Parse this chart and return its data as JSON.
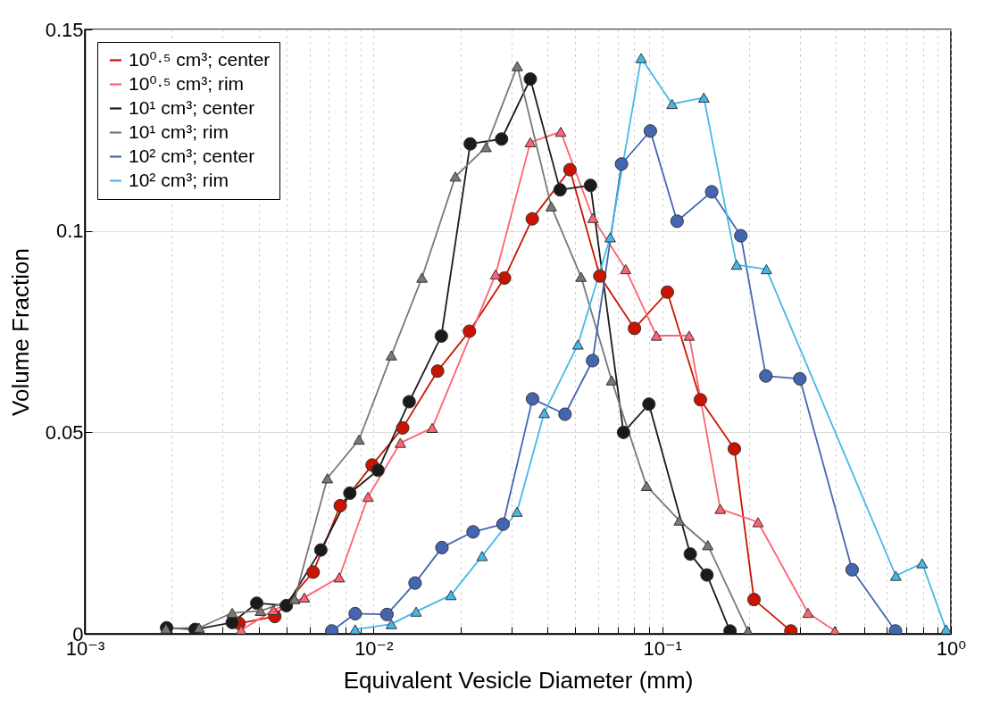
{
  "chart_data": {
    "type": "line",
    "xlabel": "Equivalent Vesicle Diameter (mm)",
    "ylabel": "Volume Fraction",
    "log": "x",
    "grid": true,
    "legend": "top left",
    "xlim": [
      0.001,
      1
    ],
    "xticks": [
      {
        "value": 0.001,
        "label": "10⁻³"
      },
      {
        "value": 0.01,
        "label": "10⁻²"
      },
      {
        "value": 0.1,
        "label": "10⁻¹"
      },
      {
        "value": 1,
        "label": "10⁰"
      }
    ],
    "ylim": [
      0,
      0.15
    ],
    "yticks": [
      0,
      0.05,
      0.1,
      0.15
    ],
    "series": [
      {
        "name": "10⁰·⁵ cm³; center",
        "color": "#c81400",
        "marker": "circle",
        "x": [
          0.00342,
          0.00455,
          0.00618,
          0.00767,
          0.00989,
          0.01262,
          0.01667,
          0.02149,
          0.02843,
          0.03548,
          0.04791,
          0.06081,
          0.08017,
          0.1042,
          0.1356,
          0.1778,
          0.208,
          0.2791
        ],
        "values": [
          0.0026,
          0.0043,
          0.0153,
          0.0318,
          0.0419,
          0.0511,
          0.0652,
          0.0751,
          0.0883,
          0.103,
          0.1152,
          0.0888,
          0.0758,
          0.0848,
          0.0581,
          0.0459,
          0.0085,
          0.0007
        ]
      },
      {
        "name": "10⁰·⁵ cm³; rim",
        "color": "#ff6272",
        "marker": "triangle",
        "x": [
          0.00348,
          0.0045,
          0.00576,
          0.00761,
          0.00957,
          0.01239,
          0.01597,
          0.02648,
          0.03493,
          0.04452,
          0.05754,
          0.07472,
          0.0955,
          0.124,
          0.1589,
          0.2148,
          0.32,
          0.3962
        ],
        "values": [
          0.0009,
          0.0059,
          0.009,
          0.014,
          0.034,
          0.0474,
          0.0511,
          0.0892,
          0.122,
          0.1246,
          0.1032,
          0.0905,
          0.074,
          0.074,
          0.031,
          0.0277,
          0.0052,
          0.0007
        ]
      },
      {
        "name": "10¹ cm³; center",
        "color": "#1a1a1a",
        "marker": "circle",
        "x": [
          0.00192,
          0.00241,
          0.00324,
          0.00394,
          0.00499,
          0.00657,
          0.00828,
          0.01036,
          0.01329,
          0.01718,
          0.02163,
          0.02777,
          0.03493,
          0.04427,
          0.05645,
          0.07345,
          0.08995,
          0.1251,
          0.1429,
          0.1718
        ],
        "values": [
          0.0015,
          0.0011,
          0.0028,
          0.0076,
          0.007,
          0.0208,
          0.0349,
          0.0406,
          0.0576,
          0.0739,
          0.1216,
          0.1228,
          0.1377,
          0.1102,
          0.1113,
          0.05,
          0.057,
          0.0198,
          0.0146,
          0.0007
        ]
      },
      {
        "name": "10¹ cm³; rim",
        "color": "#787878",
        "marker": "triangle",
        "x": [
          0.00191,
          0.00249,
          0.00324,
          0.00406,
          0.00533,
          0.00692,
          0.00891,
          0.01153,
          0.01472,
          0.01921,
          0.02454,
          0.03148,
          0.04127,
          0.05234,
          0.06683,
          0.08826,
          0.1146,
          0.1439,
          0.1982
        ],
        "values": [
          0.0013,
          0.0015,
          0.0052,
          0.0057,
          0.0086,
          0.0386,
          0.0482,
          0.0691,
          0.0884,
          0.1135,
          0.1208,
          0.1409,
          0.1061,
          0.0886,
          0.0629,
          0.0367,
          0.0281,
          0.022,
          0.0007
        ]
      },
      {
        "name": "10² cm³; center",
        "color": "#4466b0",
        "marker": "circle",
        "x": [
          0.00717,
          0.00864,
          0.01113,
          0.01393,
          0.01726,
          0.02213,
          0.0281,
          0.03555,
          0.04607,
          0.05741,
          0.07228,
          0.09098,
          0.1126,
          0.1484,
          0.1872,
          0.2286,
          0.2998,
          0.4549,
          0.6426
        ],
        "values": [
          0.0007,
          0.005,
          0.0048,
          0.0126,
          0.0214,
          0.0253,
          0.0272,
          0.0583,
          0.0545,
          0.0678,
          0.1166,
          0.1248,
          0.1024,
          0.1097,
          0.0988,
          0.064,
          0.0633,
          0.0159,
          0.0007
        ]
      },
      {
        "name": "10² cm³; rim",
        "color": "#45b8e8",
        "marker": "triangle",
        "x": [
          0.00864,
          0.01153,
          0.01405,
          0.01854,
          0.02378,
          0.03141,
          0.03901,
          0.05107,
          0.06604,
          0.08457,
          0.1082,
          0.1394,
          0.181,
          0.2296,
          0.6446,
          0.795,
          0.9616
        ],
        "values": [
          0.0011,
          0.0024,
          0.0055,
          0.0096,
          0.0193,
          0.0303,
          0.0548,
          0.0718,
          0.0984,
          0.1429,
          0.1315,
          0.1331,
          0.0916,
          0.0905,
          0.0144,
          0.0175,
          0.0011
        ]
      }
    ]
  }
}
